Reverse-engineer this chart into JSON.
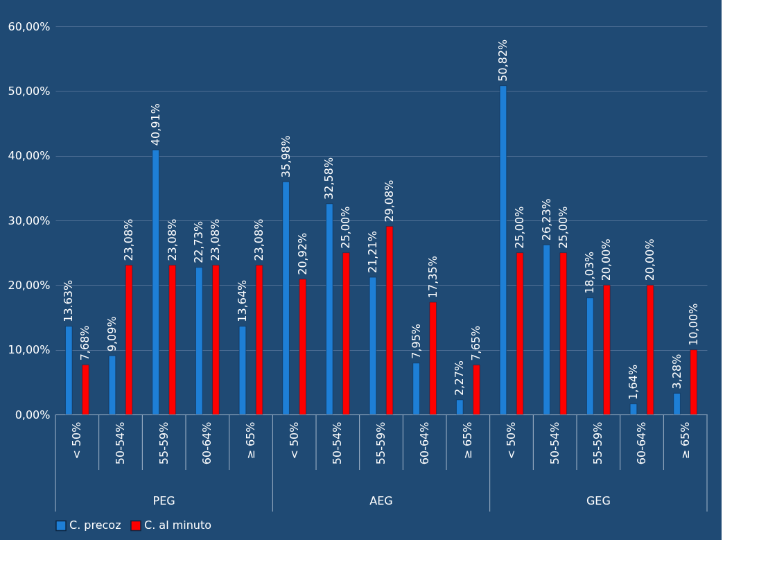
{
  "chart_data": {
    "type": "bar",
    "categories": [
      "< 50%",
      "50-54%",
      "55-59%",
      "60-64%",
      "≥ 65%",
      "< 50%",
      "50-54%",
      "55-59%",
      "60-64%",
      "≥ 65%",
      "< 50%",
      "50-54%",
      "55-59%",
      "60-64%",
      "≥ 65%"
    ],
    "series": [
      {
        "name": "C. precoz",
        "color": "#1e7fd6",
        "values": [
          13.63,
          9.09,
          40.91,
          22.73,
          13.64,
          35.98,
          32.58,
          21.21,
          7.95,
          2.27,
          50.82,
          26.23,
          18.03,
          1.64,
          3.28
        ],
        "value_labels": [
          "13.63%",
          "9,09%",
          "40,91%",
          "22,73%",
          "13,64%",
          "35,98%",
          "32,58%",
          "21,21%",
          "7,95%",
          "2,27%",
          "50,82%",
          "26,23%",
          "18,03%",
          "1,64%",
          "3,28%"
        ]
      },
      {
        "name": "C. al minuto",
        "color": "#ff0000",
        "values": [
          7.68,
          23.08,
          23.08,
          23.08,
          23.08,
          20.92,
          25.0,
          29.08,
          17.35,
          7.65,
          25.0,
          25.0,
          20.0,
          20.0,
          10.0
        ],
        "value_labels": [
          "7,68%",
          "23,08%",
          "23,08%",
          "23,08%",
          "23,08%",
          "20,92%",
          "25,00%",
          "29,08%",
          "17,35%",
          "7,65%",
          "25,00%",
          "25,00%",
          "20,00%",
          "20,00%",
          "10,00%"
        ]
      }
    ],
    "annotations": [
      "PEG",
      "AEG",
      "GEG"
    ],
    "ylim": [
      0,
      60
    ],
    "yticks": [
      {
        "value": 0,
        "label": "0,00%"
      },
      {
        "value": 10,
        "label": "10,00%"
      },
      {
        "value": 20,
        "label": "20,00%"
      },
      {
        "value": 30,
        "label": "30,00%"
      },
      {
        "value": 40,
        "label": "40,00%"
      },
      {
        "value": 50,
        "label": "50,00%"
      },
      {
        "value": 60,
        "label": "60,00%"
      }
    ],
    "grid": "y",
    "legend": "bottom"
  }
}
